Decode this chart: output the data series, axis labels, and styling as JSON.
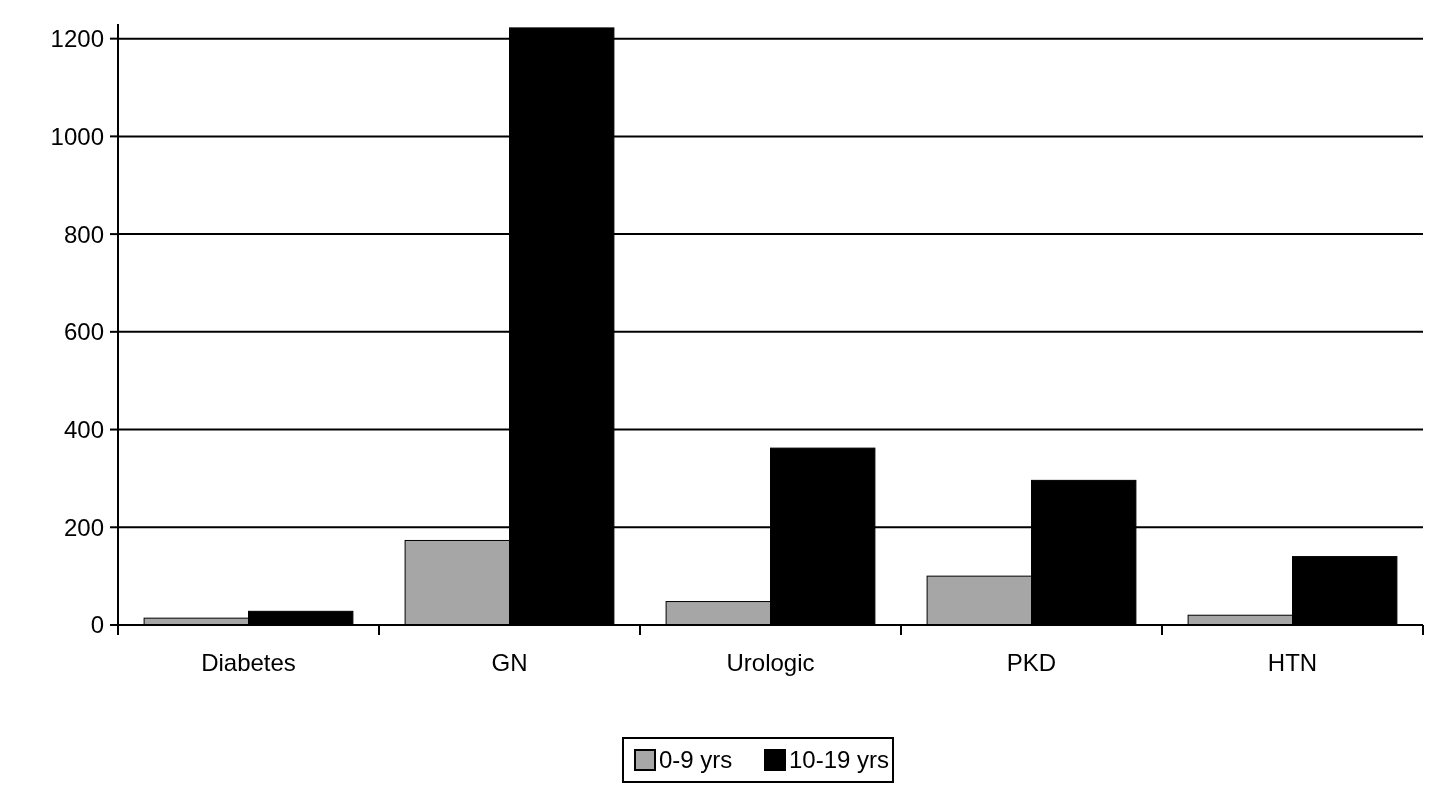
{
  "chart_data": {
    "type": "bar",
    "categories": [
      "Diabetes",
      "GN",
      "Urologic",
      "PKD",
      "HTN"
    ],
    "series": [
      {
        "name": "0-9 yrs",
        "color": "#a6a6a6",
        "values": [
          14,
          173,
          48,
          100,
          20
        ]
      },
      {
        "name": "10-19 yrs",
        "color": "#000000",
        "values": [
          28,
          1222,
          362,
          296,
          140
        ]
      }
    ],
    "ylim": [
      0,
      1230
    ],
    "yticks": [
      0,
      200,
      400,
      600,
      800,
      1000,
      1200
    ],
    "grid": "y",
    "legend": "bottom"
  }
}
